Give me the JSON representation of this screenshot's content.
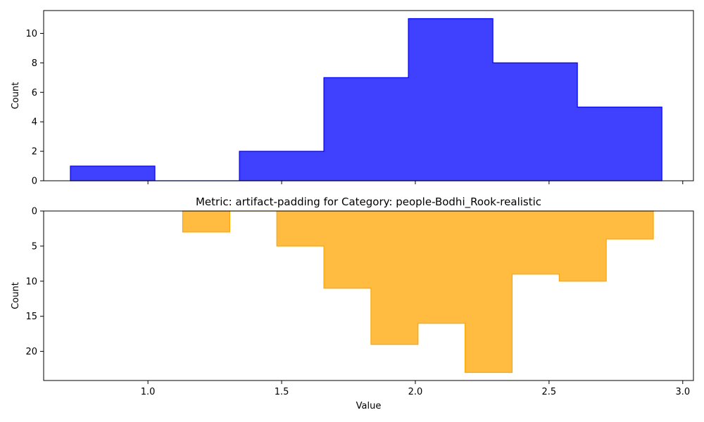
{
  "chart_data": [
    {
      "type": "bar",
      "histogram": true,
      "title": "",
      "xlabel": "",
      "ylabel": "Count",
      "xlim": [
        0.61,
        3.04
      ],
      "ylim": [
        0,
        11.55
      ],
      "yticks": [
        0,
        2,
        4,
        6,
        8,
        10
      ],
      "xticks": [
        1.0,
        1.5,
        2.0,
        2.5,
        3.0
      ],
      "show_xticklabels": false,
      "inverted_y": false,
      "color": "#0000ff",
      "series": [
        {
          "bin_edges": [
            0.71,
            1.026,
            1.342,
            1.658,
            1.974,
            2.29,
            2.606,
            2.922
          ],
          "values": [
            1,
            0,
            2,
            7,
            11,
            8,
            5
          ]
        }
      ]
    },
    {
      "type": "bar",
      "histogram": true,
      "title": "Metric: artifact-padding for Category: people-Bodhi_Rook-realistic",
      "xlabel": "Value",
      "ylabel": "Count",
      "xlim": [
        0.61,
        3.04
      ],
      "ylim": [
        0,
        24.15
      ],
      "yticks": [
        0,
        5,
        10,
        15,
        20
      ],
      "xticks": [
        1.0,
        1.5,
        2.0,
        2.5,
        3.0
      ],
      "show_xticklabels": true,
      "inverted_y": true,
      "color": "#ffa500",
      "series": [
        {
          "bin_edges": [
            1.13,
            1.306,
            1.482,
            1.658,
            1.834,
            2.01,
            2.186,
            2.362,
            2.538,
            2.714,
            2.89
          ],
          "values": [
            3,
            0,
            5,
            11,
            19,
            16,
            23,
            9,
            10,
            4
          ]
        }
      ]
    }
  ]
}
